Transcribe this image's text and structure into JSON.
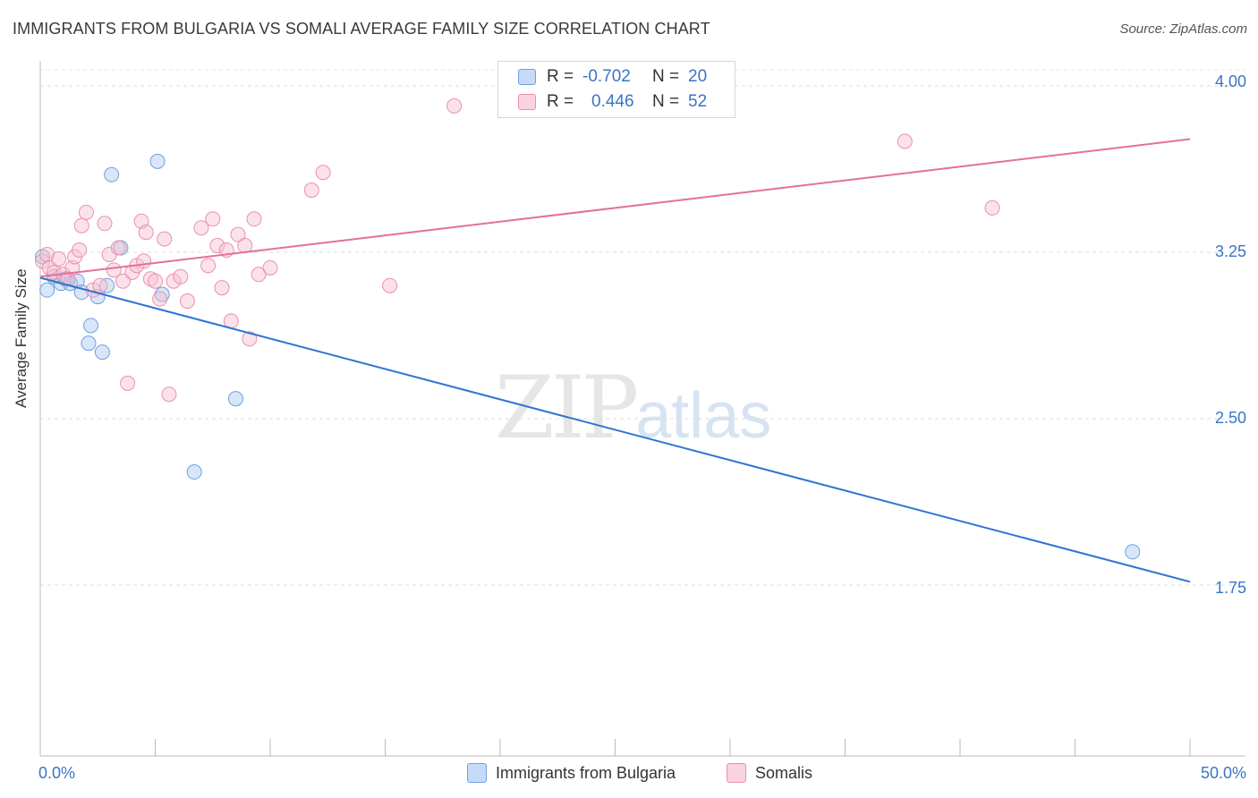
{
  "title": "IMMIGRANTS FROM BULGARIA VS SOMALI AVERAGE FAMILY SIZE CORRELATION CHART",
  "source": "Source: ZipAtlas.com",
  "watermark": {
    "zip": "ZIP",
    "atlas": "atlas"
  },
  "legend": {
    "rows": [
      {
        "r_label": "R =",
        "r_value": "-0.702",
        "n_label": "N =",
        "n_value": "20",
        "color": "#a9c8f0",
        "border": "#6fa0de"
      },
      {
        "r_label": "R =",
        "r_value": "0.446",
        "n_label": "N =",
        "n_value": "52",
        "color": "#f7bfd0",
        "border": "#eb8fae"
      }
    ]
  },
  "bottom_legend": [
    {
      "label": "Immigrants from Bulgaria",
      "color": "#c5daf6",
      "border": "#6fa0de"
    },
    {
      "label": "Somalis",
      "color": "#fbd3df",
      "border": "#eb8fae"
    }
  ],
  "chart_data": {
    "type": "scatter",
    "title": "IMMIGRANTS FROM BULGARIA VS SOMALI AVERAGE FAMILY SIZE CORRELATION CHART",
    "xlabel": "",
    "ylabel": "Average Family Size",
    "xlim": [
      0,
      50
    ],
    "ylim": [
      1.0,
      4.15
    ],
    "x_tick_labels": [
      "0.0%",
      "50.0%"
    ],
    "y_ticks": [
      1.75,
      2.5,
      3.25,
      4.0
    ],
    "y_tick_labels": [
      "1.75",
      "2.50",
      "3.25",
      "4.00"
    ],
    "grid": true,
    "series": [
      {
        "name": "Immigrants from Bulgaria",
        "color": "#6fa0de",
        "fill": "rgba(169,200,240,0.45)",
        "line_color": "#2f74d0",
        "trend": {
          "x": [
            0,
            50
          ],
          "y": [
            3.135,
            1.765
          ]
        },
        "points": [
          [
            0.1,
            3.23
          ],
          [
            0.3,
            3.08
          ],
          [
            0.6,
            3.14
          ],
          [
            0.9,
            3.11
          ],
          [
            1.1,
            3.13
          ],
          [
            1.3,
            3.11
          ],
          [
            1.6,
            3.12
          ],
          [
            1.8,
            3.07
          ],
          [
            2.1,
            2.84
          ],
          [
            2.2,
            2.92
          ],
          [
            2.5,
            3.05
          ],
          [
            2.7,
            2.8
          ],
          [
            2.9,
            3.1
          ],
          [
            3.1,
            3.6
          ],
          [
            3.5,
            3.27
          ],
          [
            5.1,
            3.66
          ],
          [
            5.3,
            3.06
          ],
          [
            6.7,
            2.26
          ],
          [
            8.5,
            2.59
          ],
          [
            47.5,
            1.9
          ]
        ]
      },
      {
        "name": "Somalis",
        "color": "#eb8fae",
        "fill": "rgba(247,191,208,0.45)",
        "line_color": "#e4709a",
        "trend": {
          "x": [
            0,
            50
          ],
          "y": [
            3.14,
            3.76
          ]
        },
        "points": [
          [
            0.1,
            3.21
          ],
          [
            0.3,
            3.24
          ],
          [
            0.4,
            3.18
          ],
          [
            0.6,
            3.16
          ],
          [
            0.8,
            3.22
          ],
          [
            1.0,
            3.15
          ],
          [
            1.2,
            3.13
          ],
          [
            1.4,
            3.18
          ],
          [
            1.5,
            3.23
          ],
          [
            1.7,
            3.26
          ],
          [
            1.8,
            3.37
          ],
          [
            2.0,
            3.43
          ],
          [
            2.3,
            3.08
          ],
          [
            2.6,
            3.1
          ],
          [
            2.8,
            3.38
          ],
          [
            3.0,
            3.24
          ],
          [
            3.2,
            3.17
          ],
          [
            3.4,
            3.27
          ],
          [
            3.6,
            3.12
          ],
          [
            3.8,
            2.66
          ],
          [
            4.0,
            3.16
          ],
          [
            4.2,
            3.19
          ],
          [
            4.4,
            3.39
          ],
          [
            4.6,
            3.34
          ],
          [
            4.8,
            3.13
          ],
          [
            5.0,
            3.12
          ],
          [
            5.2,
            3.04
          ],
          [
            5.4,
            3.31
          ],
          [
            5.6,
            2.61
          ],
          [
            5.8,
            3.12
          ],
          [
            6.1,
            3.14
          ],
          [
            6.4,
            3.03
          ],
          [
            7.0,
            3.36
          ],
          [
            7.3,
            3.19
          ],
          [
            7.5,
            3.4
          ],
          [
            7.7,
            3.28
          ],
          [
            7.9,
            3.09
          ],
          [
            8.1,
            3.26
          ],
          [
            8.3,
            2.94
          ],
          [
            8.6,
            3.33
          ],
          [
            8.9,
            3.28
          ],
          [
            9.1,
            2.86
          ],
          [
            9.3,
            3.4
          ],
          [
            9.5,
            3.15
          ],
          [
            10.0,
            3.18
          ],
          [
            11.8,
            3.53
          ],
          [
            12.3,
            3.61
          ],
          [
            15.2,
            3.1
          ],
          [
            18.0,
            3.91
          ],
          [
            37.6,
            3.75
          ],
          [
            41.4,
            3.45
          ],
          [
            4.5,
            3.21
          ]
        ]
      }
    ]
  }
}
